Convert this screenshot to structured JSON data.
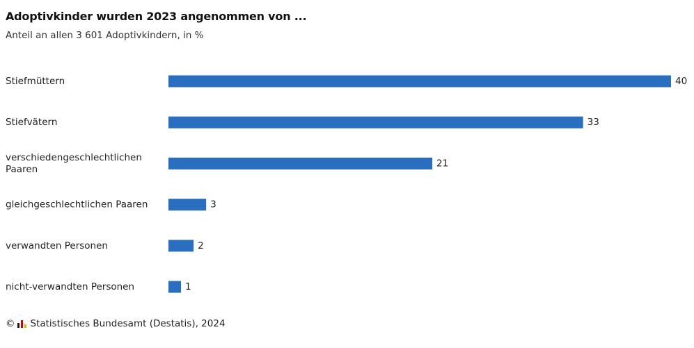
{
  "header": {
    "title": "Adoptivkinder wurden 2023 angenommen von ...",
    "subtitle": "Anteil an allen 3 601 Adoptivkindern, in %"
  },
  "footer": {
    "copyright_symbol": "©",
    "source": "Statistisches Bundesamt (Destatis), 2024"
  },
  "colors": {
    "bar": "#2a6ebf"
  },
  "chart_data": {
    "type": "bar",
    "orientation": "horizontal",
    "categories": [
      [
        "Stiefmüttern"
      ],
      [
        "Stiefvätern"
      ],
      [
        "verschiedengeschlechtlichen",
        "Paaren"
      ],
      [
        "gleichgeschlechtlichen Paaren"
      ],
      [
        "verwandten Personen"
      ],
      [
        "nicht-verwandten Personen"
      ]
    ],
    "values": [
      40,
      33,
      21,
      3,
      2,
      1
    ],
    "value_labels": [
      "40",
      "33",
      "21",
      "3",
      "2",
      "1"
    ],
    "xlim": [
      0,
      40
    ],
    "grid": false,
    "legend": false
  }
}
